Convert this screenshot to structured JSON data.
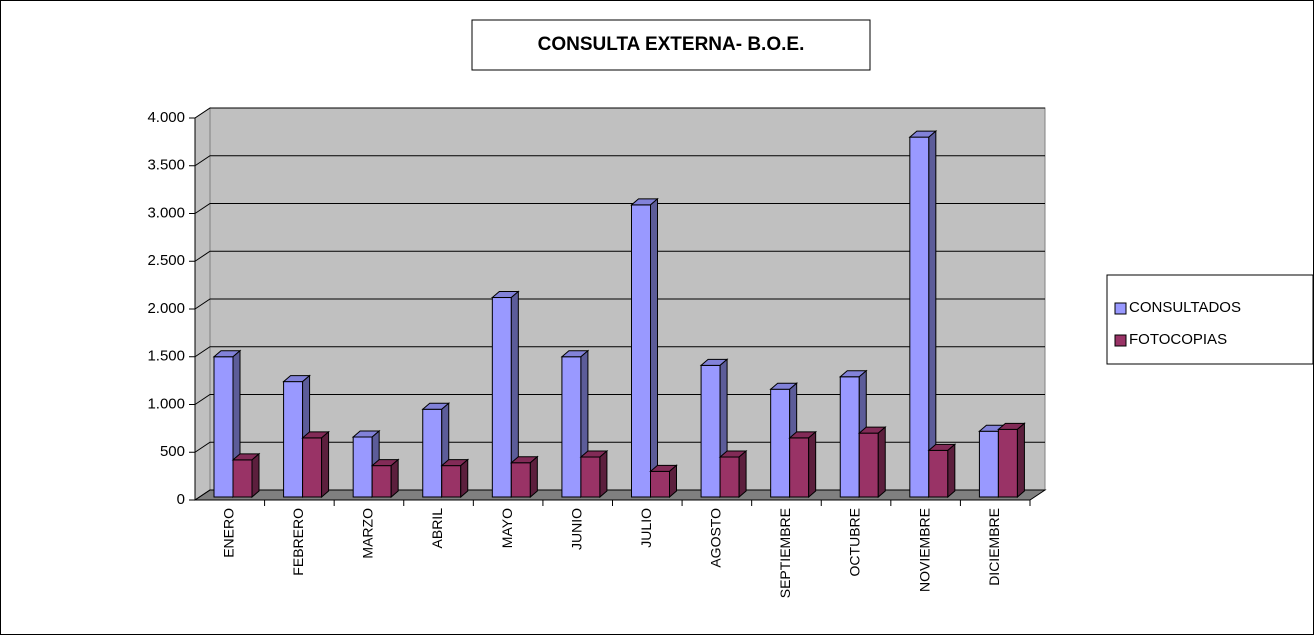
{
  "chart_data": {
    "type": "bar3d",
    "title": "CONSULTA EXTERNA- B.O.E.",
    "categories": [
      "ENERO",
      "FEBRERO",
      "MARZO",
      "ABRIL",
      "MAYO",
      "JUNIO",
      "JULIO",
      "AGOSTO",
      "SEPTIEMBRE",
      "OCTUBRE",
      "NOVIEMBRE",
      "DICIEMBRE"
    ],
    "series": [
      {
        "name": "CONSULTADOS",
        "color": "#9999ff",
        "values": [
          1500,
          1240,
          660,
          950,
          2120,
          1500,
          3090,
          1410,
          1160,
          1290,
          3800,
          720
        ]
      },
      {
        "name": "FOTOCOPIAS",
        "color": "#993366",
        "values": [
          420,
          650,
          360,
          360,
          390,
          450,
          300,
          450,
          650,
          700,
          520,
          740
        ]
      }
    ],
    "ylim": [
      0,
      4000
    ],
    "yticks": [
      0,
      500,
      {
        "value": 1000,
        "label": "1.000"
      },
      {
        "value": 1500,
        "label": "1.500"
      },
      {
        "value": 2000,
        "label": "2.000"
      },
      {
        "value": 2500,
        "label": "2.500"
      },
      {
        "value": 3000,
        "label": "3.000"
      },
      {
        "value": 3500,
        "label": "3.500"
      },
      {
        "value": 4000,
        "label": "4.000"
      }
    ],
    "grid": true,
    "legend": "right"
  }
}
